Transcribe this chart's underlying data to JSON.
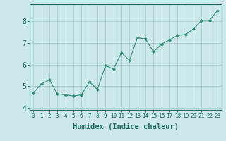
{
  "x": [
    0,
    1,
    2,
    3,
    4,
    5,
    6,
    7,
    8,
    9,
    10,
    11,
    12,
    13,
    14,
    15,
    16,
    17,
    18,
    19,
    20,
    21,
    22,
    23
  ],
  "y": [
    4.7,
    5.1,
    5.3,
    4.65,
    4.6,
    4.55,
    4.6,
    5.2,
    4.85,
    5.95,
    5.8,
    6.55,
    6.2,
    7.25,
    7.2,
    6.6,
    6.95,
    7.15,
    7.35,
    7.4,
    7.65,
    8.05,
    8.05,
    8.5
  ],
  "line_color": "#2e8b74",
  "marker": "D",
  "marker_size": 2,
  "line_width": 0.8,
  "bg_color": "#cce8e8",
  "grid_color": "#aad0cc",
  "axis_color": "#1a6b5a",
  "xlabel": "Humidex (Indice chaleur)",
  "xlabel_color": "#1a6b5a",
  "xlim": [
    -0.5,
    23.5
  ],
  "ylim": [
    3.9,
    8.8
  ],
  "yticks": [
    4,
    5,
    6,
    7,
    8
  ],
  "xticks": [
    0,
    1,
    2,
    3,
    4,
    5,
    6,
    7,
    8,
    9,
    10,
    11,
    12,
    13,
    14,
    15,
    16,
    17,
    18,
    19,
    20,
    21,
    22,
    23
  ],
  "xtick_labels": [
    "0",
    "1",
    "2",
    "3",
    "4",
    "5",
    "6",
    "7",
    "8",
    "9",
    "10",
    "11",
    "12",
    "13",
    "14",
    "15",
    "16",
    "17",
    "18",
    "19",
    "20",
    "21",
    "22",
    "23"
  ],
  "tick_fontsize": 5.5,
  "xlabel_fontsize": 7.5,
  "ytick_fontsize": 7,
  "spine_color": "#1a6b5a"
}
